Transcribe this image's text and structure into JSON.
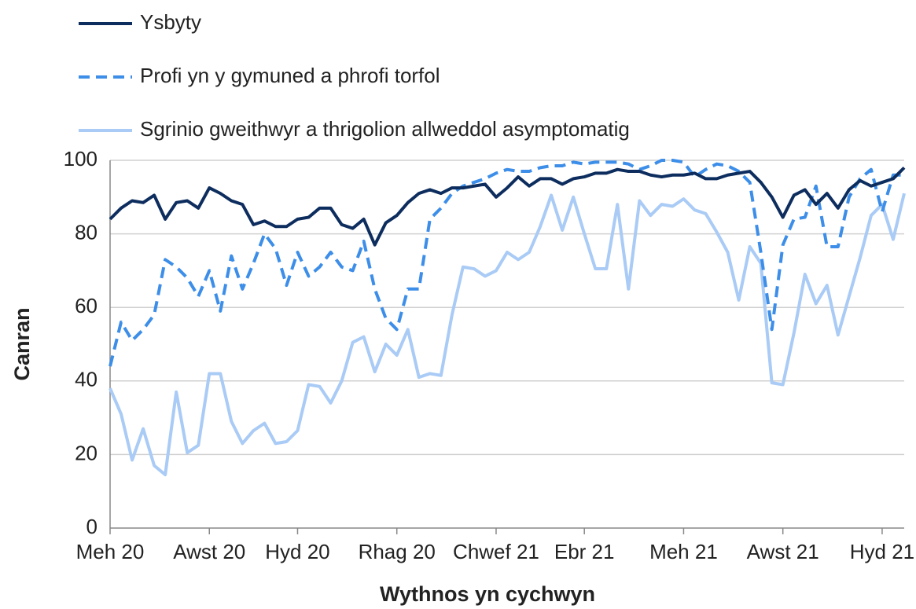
{
  "chart_data": {
    "type": "line",
    "x_label": "Wythnos yn cychwyn",
    "y_label": "Canran",
    "categories": [
      "Meh 20",
      null,
      null,
      null,
      null,
      null,
      null,
      null,
      null,
      "Awst 20",
      null,
      null,
      null,
      null,
      null,
      null,
      null,
      "Hyd 20",
      null,
      null,
      null,
      null,
      null,
      null,
      null,
      null,
      "Rhag 20",
      null,
      null,
      null,
      null,
      null,
      null,
      null,
      null,
      "Chwef 21",
      null,
      null,
      null,
      null,
      null,
      null,
      null,
      "Ebr 21",
      null,
      null,
      null,
      null,
      null,
      null,
      null,
      null,
      "Meh 21",
      null,
      null,
      null,
      null,
      null,
      null,
      null,
      null,
      "Awst 21",
      null,
      null,
      null,
      null,
      null,
      null,
      null,
      null,
      "Hyd 21",
      null,
      null
    ],
    "series": [
      {
        "name": "Ysbyty",
        "color": "#0d2d5e",
        "dashed": false,
        "values": [
          84,
          87,
          89,
          88.5,
          90.5,
          84,
          88.5,
          89,
          87,
          92.5,
          91,
          89,
          88,
          82.5,
          83.5,
          82,
          82,
          84,
          84.5,
          87,
          87,
          82.5,
          81.5,
          84,
          77,
          83,
          85,
          88.5,
          91,
          92,
          91,
          92.5,
          92.5,
          93,
          93.5,
          90,
          92.5,
          95.5,
          93,
          95,
          95,
          93.5,
          95,
          95.5,
          96.5,
          96.5,
          97.5,
          97,
          97,
          96,
          95.5,
          96,
          96,
          96.5,
          95,
          95,
          96,
          96.5,
          97,
          94,
          90,
          84.5,
          90.5,
          92,
          88,
          91,
          87,
          92,
          94.5,
          93,
          94,
          95,
          98
        ]
      },
      {
        "name": "Profi yn y gymuned a phrofi torfol",
        "color": "#3d8ee8",
        "dashed": true,
        "values": [
          44,
          56,
          51,
          54,
          58,
          73,
          71,
          68,
          63,
          70,
          59,
          74,
          65,
          72,
          80,
          76,
          66,
          75,
          68.5,
          71,
          75,
          71,
          70,
          78,
          65,
          57,
          54,
          65,
          65,
          84,
          87,
          91,
          93,
          94,
          95,
          96.5,
          97.5,
          97,
          97,
          98,
          98.5,
          98.5,
          99.5,
          99,
          99.5,
          99.5,
          99.5,
          99,
          97.5,
          98.5,
          100,
          100,
          99.5,
          95.5,
          97.5,
          99,
          98.5,
          97,
          94,
          75,
          54,
          77,
          84,
          84.5,
          93,
          76.5,
          76.5,
          90,
          95,
          97.5,
          86,
          96,
          96
        ]
      },
      {
        "name": "Sgrinio gweithwyr a thrigolion allweddol asymptomatig",
        "color": "#a9cbf5",
        "dashed": false,
        "values": [
          38,
          31,
          18.5,
          27,
          17,
          14.5,
          37,
          20.5,
          22.5,
          42,
          42,
          29,
          23,
          26.5,
          28.5,
          23,
          23.5,
          26.5,
          39,
          38.5,
          34,
          40,
          50.5,
          52,
          42.5,
          50,
          47,
          54,
          41,
          42,
          41.5,
          58,
          71,
          70.5,
          68.5,
          70,
          75,
          73,
          75,
          82,
          90.5,
          81,
          90,
          80,
          70.5,
          70.5,
          88,
          65,
          89,
          85,
          88,
          87.5,
          89.5,
          86.5,
          85.5,
          80.5,
          75,
          62,
          76.5,
          72,
          39.5,
          39,
          53,
          69,
          61,
          66,
          52.5,
          63,
          73.5,
          85,
          88,
          78.5,
          91
        ]
      }
    ],
    "ylim": [
      0,
      100
    ],
    "yticks": [
      0,
      20,
      40,
      60,
      80,
      100
    ],
    "grid": true,
    "legend": "top"
  }
}
